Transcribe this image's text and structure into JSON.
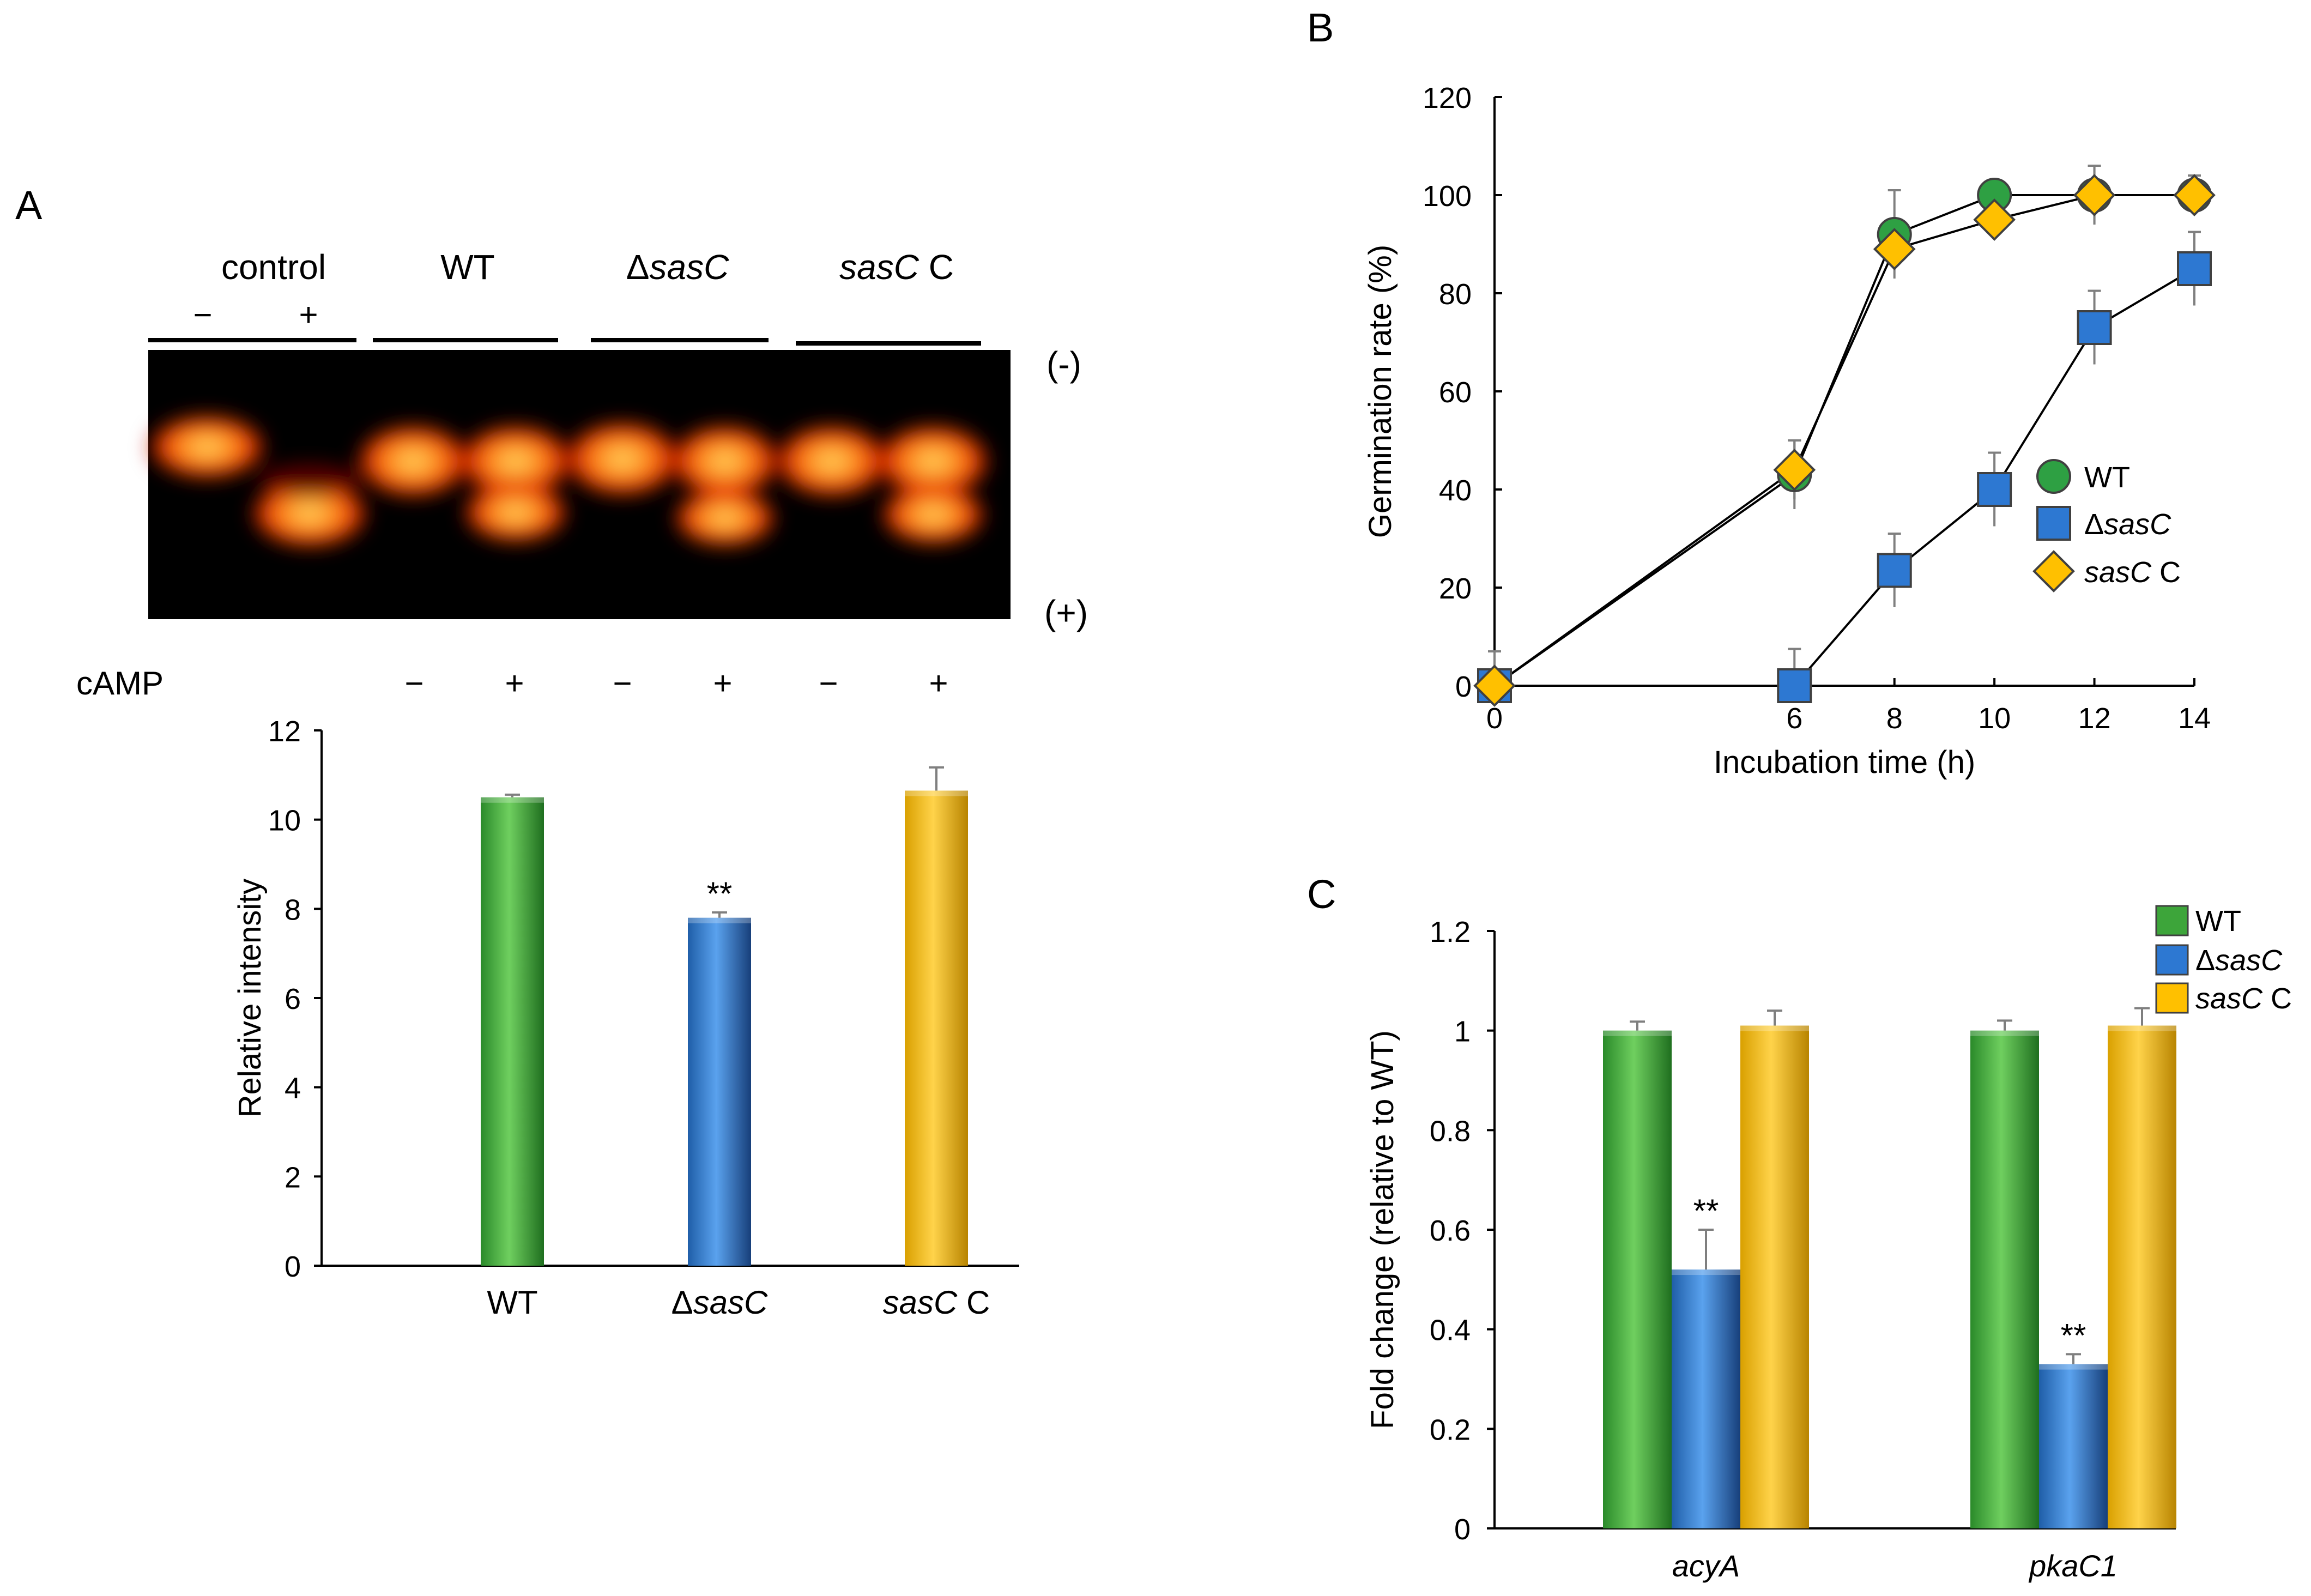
{
  "colors": {
    "wt": "#3da53a",
    "dsasc": "#2d78d2",
    "sascc": "#ffc000",
    "axis": "#000000",
    "err": "#7f7f7f",
    "wt_marker": "#2ea043"
  },
  "panels": {
    "a": "A",
    "b": "B",
    "c": "C"
  },
  "gel": {
    "group_labels": [
      {
        "prefix": "",
        "italic": "",
        "suffix": "control"
      },
      {
        "prefix": "",
        "italic": "",
        "suffix": "WT"
      },
      {
        "prefix": "Δ",
        "italic": "sasC",
        "suffix": ""
      },
      {
        "prefix": "",
        "italic": "sasC",
        "suffix": " C"
      }
    ],
    "control_signs": [
      "−",
      "+"
    ],
    "polarity_top": "(-)",
    "polarity_bottom": "(+)",
    "camp_label": "cAMP",
    "camp_signs": [
      "−",
      "+",
      "−",
      "+",
      "−",
      "+"
    ]
  },
  "chart_data": [
    {
      "id": "A-bottom",
      "type": "bar",
      "title": "",
      "xlabel": "",
      "ylabel": "Relative intensity",
      "ylim": [
        0,
        12
      ],
      "yticks": [
        "0",
        "2",
        "4",
        "6",
        "8",
        "10",
        "12"
      ],
      "categories": [
        {
          "prefix": "",
          "italic": "",
          "suffix": "WT"
        },
        {
          "prefix": "Δ",
          "italic": "sasC",
          "suffix": ""
        },
        {
          "prefix": "",
          "italic": "sasC",
          "suffix": " C"
        }
      ],
      "values": [
        10.5,
        7.8,
        10.65
      ],
      "errors": [
        0.06,
        0.12,
        0.52
      ],
      "annotations": [
        "",
        "**",
        ""
      ]
    },
    {
      "id": "B",
      "type": "line",
      "xlabel": "Incubation time (h)",
      "ylabel": "Germination rate (%)",
      "xlim": [
        0,
        14
      ],
      "ylim": [
        0,
        120
      ],
      "xticks": [
        "0",
        "6",
        "8",
        "10",
        "12",
        "14"
      ],
      "xtick_values": [
        0,
        6,
        8,
        10,
        12,
        14
      ],
      "yticks": [
        "0",
        "20",
        "40",
        "60",
        "80",
        "100",
        "120"
      ],
      "legend_position": "right-middle",
      "series": [
        {
          "name": {
            "prefix": "",
            "italic": "",
            "suffix": "WT"
          },
          "marker": "circle",
          "x": [
            0,
            6,
            8,
            10,
            12,
            14
          ],
          "y": [
            0,
            43,
            92,
            100,
            100,
            100
          ],
          "err": [
            7,
            7,
            9,
            0,
            6,
            4
          ]
        },
        {
          "name": {
            "prefix": "Δ",
            "italic": "sasC",
            "suffix": ""
          },
          "marker": "square",
          "x": [
            0,
            6,
            8,
            10,
            12,
            14
          ],
          "y": [
            0,
            0,
            23.5,
            40,
            73,
            85
          ],
          "err": [
            0,
            7.5,
            7.5,
            7.5,
            7.5,
            7.5
          ]
        },
        {
          "name": {
            "prefix": "",
            "italic": "sasC",
            "suffix": " C"
          },
          "marker": "diamond",
          "x": [
            0,
            6,
            8,
            10,
            12,
            14
          ],
          "y": [
            0,
            44,
            89,
            95,
            100,
            100
          ],
          "err": [
            7,
            6,
            0,
            0,
            6,
            4
          ]
        }
      ]
    },
    {
      "id": "C",
      "type": "bar",
      "xlabel": "",
      "ylabel": "Fold change (relative to WT)",
      "ylim": [
        0,
        1.2
      ],
      "yticks": [
        "0",
        "0.2",
        "0.4",
        "0.6",
        "0.8",
        "1",
        "1.2"
      ],
      "categories": [
        "acyA",
        "pkaC1"
      ],
      "legend_position": "top-right",
      "series": [
        {
          "name": {
            "prefix": "",
            "italic": "",
            "suffix": "WT"
          },
          "values": [
            1.0,
            1.0
          ],
          "errors": [
            0.018,
            0.02
          ],
          "annotations": [
            "",
            ""
          ]
        },
        {
          "name": {
            "prefix": "Δ",
            "italic": "sasC",
            "suffix": ""
          },
          "values": [
            0.52,
            0.33
          ],
          "errors": [
            0.08,
            0.02
          ],
          "annotations": [
            "**",
            "**"
          ]
        },
        {
          "name": {
            "prefix": "",
            "italic": "sasC",
            "suffix": " C"
          },
          "values": [
            1.01,
            1.01
          ],
          "errors": [
            0.03,
            0.035
          ],
          "annotations": [
            "",
            ""
          ]
        }
      ]
    }
  ]
}
